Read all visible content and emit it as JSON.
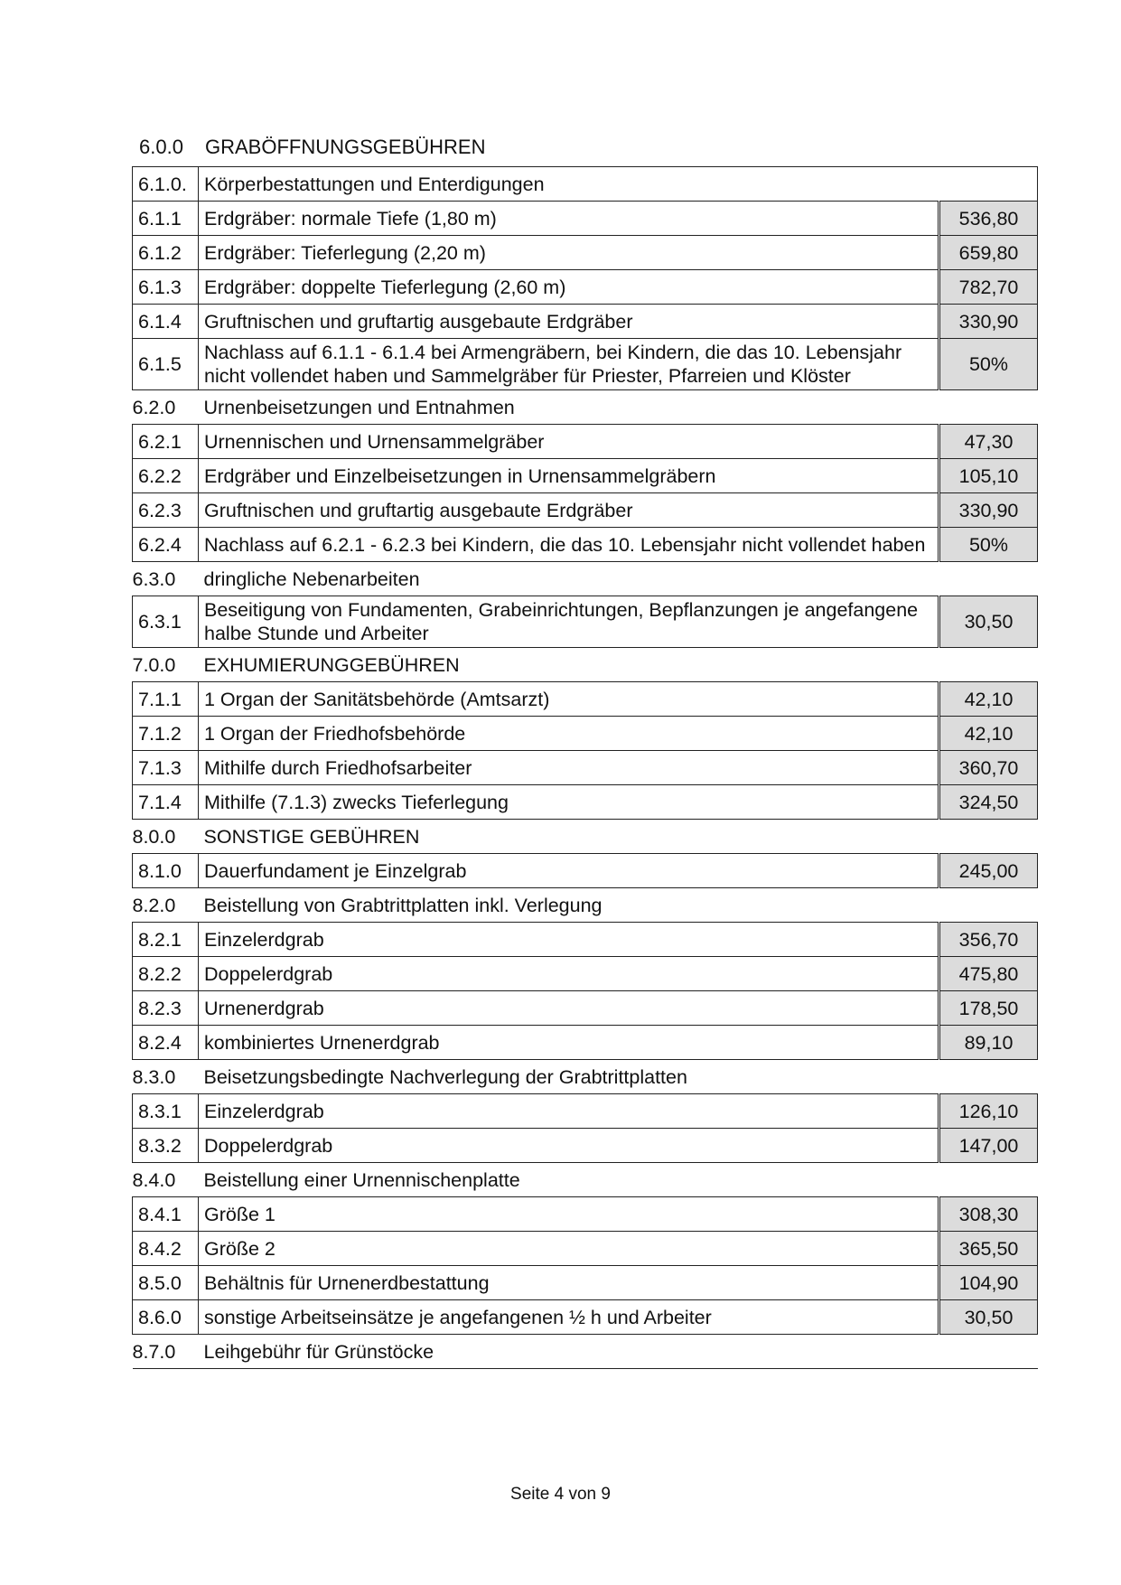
{
  "title": {
    "number": "6.0.0",
    "label": "GRABÖFFNUNGSGEBÜHREN"
  },
  "rows": [
    {
      "type": "top",
      "number": "6.1.0.",
      "label": "Körperbestattungen und Enterdigungen"
    },
    {
      "type": "item",
      "number": "6.1.1",
      "label": "Erdgräber: normale Tiefe (1,80 m)",
      "value": "536,80"
    },
    {
      "type": "item",
      "number": "6.1.2",
      "label": "Erdgräber: Tieferlegung (2,20 m)",
      "value": "659,80"
    },
    {
      "type": "item",
      "number": "6.1.3",
      "label": "Erdgräber: doppelte Tieferlegung (2,60 m)",
      "value": "782,70"
    },
    {
      "type": "item",
      "number": "6.1.4",
      "label": "Gruftnischen und gruftartig ausgebaute Erdgräber",
      "value": "330,90"
    },
    {
      "type": "item",
      "number": "6.1.5",
      "label": "Nachlass auf 6.1.1 - 6.1.4 bei Armengräbern, bei Kindern, die das 10. Lebensjahr nicht vollendet haben und Sammelgräber für Priester, Pfarreien und Klöster",
      "value": "50%"
    },
    {
      "type": "sec",
      "number": "6.2.0",
      "label": "Urnenbeisetzungen und Entnahmen"
    },
    {
      "type": "item",
      "number": "6.2.1",
      "label": "Urnennischen und Urnensammelgräber",
      "value": "47,30"
    },
    {
      "type": "item",
      "number": "6.2.2",
      "label": "Erdgräber und Einzelbeisetzungen in Urnensammelgräbern",
      "value": "105,10"
    },
    {
      "type": "item",
      "number": "6.2.3",
      "label": "Gruftnischen und gruftartig ausgebaute Erdgräber",
      "value": "330,90"
    },
    {
      "type": "item",
      "number": "6.2.4",
      "label": "Nachlass auf 6.2.1 - 6.2.3 bei Kindern, die das 10. Lebensjahr nicht vollendet haben",
      "value": "50%"
    },
    {
      "type": "sec",
      "number": "6.3.0",
      "label": "dringliche Nebenarbeiten"
    },
    {
      "type": "item",
      "number": "6.3.1",
      "label": "Beseitigung von Fundamenten, Grabeinrichtungen, Bepflanzungen je angefangene halbe Stunde und Arbeiter",
      "value": "30,50"
    },
    {
      "type": "sec",
      "number": "7.0.0",
      "label": "EXHUMIERUNGGEBÜHREN"
    },
    {
      "type": "item",
      "number": "7.1.1",
      "label": "1 Organ der Sanitätsbehörde (Amtsarzt)",
      "value": "42,10"
    },
    {
      "type": "item",
      "number": "7.1.2",
      "label": "1 Organ der Friedhofsbehörde",
      "value": "42,10"
    },
    {
      "type": "item",
      "number": "7.1.3",
      "label": "Mithilfe durch Friedhofsarbeiter",
      "value": "360,70"
    },
    {
      "type": "item",
      "number": "7.1.4",
      "label": "Mithilfe (7.1.3) zwecks Tieferlegung",
      "value": "324,50"
    },
    {
      "type": "sec",
      "number": "8.0.0",
      "label": "SONSTIGE GEBÜHREN"
    },
    {
      "type": "item",
      "number": "8.1.0",
      "label": "Dauerfundament je Einzelgrab",
      "value": "245,00"
    },
    {
      "type": "sec",
      "number": "8.2.0",
      "label": "Beistellung von Grabtrittplatten inkl. Verlegung"
    },
    {
      "type": "item",
      "number": "8.2.1",
      "label": "Einzelerdgrab",
      "value": "356,70"
    },
    {
      "type": "item",
      "number": "8.2.2",
      "label": "Doppelerdgrab",
      "value": "475,80"
    },
    {
      "type": "item",
      "number": "8.2.3",
      "label": "Urnenerdgrab",
      "value": "178,50"
    },
    {
      "type": "item",
      "number": "8.2.4",
      "label": "kombiniertes Urnenerdgrab",
      "value": "89,10"
    },
    {
      "type": "sec",
      "number": "8.3.0",
      "label": "Beisetzungsbedingte Nachverlegung der Grabtrittplatten"
    },
    {
      "type": "item",
      "number": "8.3.1",
      "label": "Einzelerdgrab",
      "value": "126,10"
    },
    {
      "type": "item",
      "number": "8.3.2",
      "label": "Doppelerdgrab",
      "value": "147,00"
    },
    {
      "type": "sec",
      "number": "8.4.0",
      "label": "Beistellung einer Urnennischenplatte"
    },
    {
      "type": "item",
      "number": "8.4.1",
      "label": "Größe 1",
      "value": "308,30"
    },
    {
      "type": "item",
      "number": "8.4.2",
      "label": "Größe 2",
      "value": "365,50"
    },
    {
      "type": "item",
      "number": "8.5.0",
      "label": "Behältnis für Urnenerdbestattung",
      "value": "104,90"
    },
    {
      "type": "item",
      "number": "8.6.0",
      "label": "sonstige Arbeitseinsätze je angefangenen ½ h und Arbeiter",
      "value": "30,50"
    },
    {
      "type": "sec",
      "number": "8.7.0",
      "label": "Leihgebühr für Grünstöcke"
    }
  ],
  "footer": "Seite 4 von 9"
}
